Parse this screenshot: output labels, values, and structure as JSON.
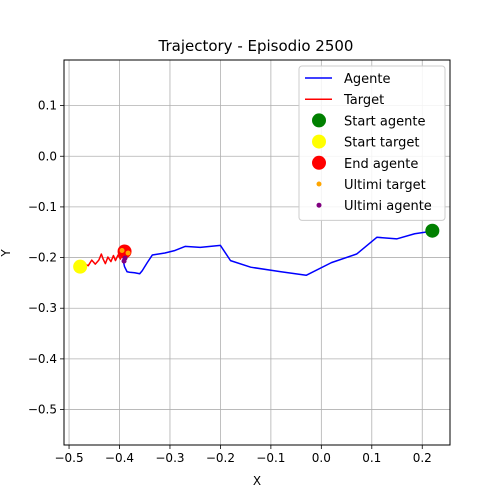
{
  "chart_data": {
    "type": "line",
    "title": "Trajectory - Episodio 2500",
    "xlabel": "X",
    "ylabel": "Y",
    "xlim": [
      -0.51,
      0.255
    ],
    "ylim": [
      -0.57,
      0.19
    ],
    "xticks": [
      -0.5,
      -0.4,
      -0.3,
      -0.2,
      -0.1,
      0.0,
      0.1,
      0.2
    ],
    "xtick_labels": [
      "−0.5",
      "−0.4",
      "−0.3",
      "−0.2",
      "−0.1",
      "0.0",
      "0.1",
      "0.2"
    ],
    "yticks": [
      0.1,
      0.0,
      -0.1,
      -0.2,
      -0.3,
      -0.4,
      -0.5
    ],
    "ytick_labels": [
      "0.1",
      "0.0",
      "−0.1",
      "−0.2",
      "−0.3",
      "−0.4",
      "−0.5"
    ],
    "grid": true,
    "legend_position": "upper right",
    "legend": [
      {
        "label": "Agente",
        "kind": "line",
        "color": "#0000ff"
      },
      {
        "label": "Target",
        "kind": "line",
        "color": "#ff0000"
      },
      {
        "label": "Start agente",
        "kind": "marker",
        "color": "#008000",
        "size": "large"
      },
      {
        "label": "Start target",
        "kind": "marker",
        "color": "#ffff00",
        "size": "large"
      },
      {
        "label": "End agente",
        "kind": "marker",
        "color": "#ff0000",
        "size": "large"
      },
      {
        "label": "Ultimi target",
        "kind": "marker",
        "color": "#ffa500",
        "size": "small"
      },
      {
        "label": "Ultimi agente",
        "kind": "marker",
        "color": "#800080",
        "size": "small"
      }
    ],
    "series": [
      {
        "name": "Agente",
        "color": "#0000ff",
        "points": [
          [
            0.22,
            -0.147
          ],
          [
            0.205,
            -0.15
          ],
          [
            0.185,
            -0.153
          ],
          [
            0.15,
            -0.163
          ],
          [
            0.11,
            -0.16
          ],
          [
            0.07,
            -0.193
          ],
          [
            0.02,
            -0.21
          ],
          [
            -0.03,
            -0.235
          ],
          [
            -0.08,
            -0.228
          ],
          [
            -0.14,
            -0.219
          ],
          [
            -0.18,
            -0.206
          ],
          [
            -0.2,
            -0.176
          ],
          [
            -0.24,
            -0.18
          ],
          [
            -0.27,
            -0.178
          ],
          [
            -0.29,
            -0.186
          ],
          [
            -0.31,
            -0.191
          ],
          [
            -0.335,
            -0.195
          ],
          [
            -0.345,
            -0.21
          ],
          [
            -0.355,
            -0.226
          ],
          [
            -0.36,
            -0.232
          ],
          [
            -0.37,
            -0.23
          ],
          [
            -0.38,
            -0.229
          ],
          [
            -0.385,
            -0.228
          ],
          [
            -0.39,
            -0.218
          ],
          [
            -0.393,
            -0.205
          ],
          [
            -0.392,
            -0.196
          ],
          [
            -0.39,
            -0.188
          ]
        ]
      },
      {
        "name": "Target",
        "color": "#ff0000",
        "points": [
          [
            -0.478,
            -0.218
          ],
          [
            -0.47,
            -0.212
          ],
          [
            -0.462,
            -0.216
          ],
          [
            -0.455,
            -0.205
          ],
          [
            -0.448,
            -0.213
          ],
          [
            -0.441,
            -0.205
          ],
          [
            -0.436,
            -0.193
          ],
          [
            -0.432,
            -0.204
          ],
          [
            -0.428,
            -0.212
          ],
          [
            -0.423,
            -0.199
          ],
          [
            -0.417,
            -0.208
          ],
          [
            -0.412,
            -0.196
          ],
          [
            -0.408,
            -0.206
          ],
          [
            -0.403,
            -0.195
          ],
          [
            -0.398,
            -0.203
          ],
          [
            -0.394,
            -0.19
          ],
          [
            -0.389,
            -0.195
          ],
          [
            -0.385,
            -0.187
          ],
          [
            -0.381,
            -0.192
          ]
        ]
      }
    ],
    "markers": [
      {
        "name": "Start agente",
        "x": 0.22,
        "y": -0.147,
        "color": "#008000",
        "size": "large"
      },
      {
        "name": "Start target",
        "x": -0.478,
        "y": -0.218,
        "color": "#ffff00",
        "size": "large"
      },
      {
        "name": "End agente",
        "x": -0.39,
        "y": -0.188,
        "color": "#ff0000",
        "size": "large"
      },
      {
        "name": "Ultimi target",
        "x": -0.383,
        "y": -0.191,
        "color": "#ffa500",
        "size": "small"
      },
      {
        "name": "Ultimi target",
        "x": -0.395,
        "y": -0.186,
        "color": "#ffa500",
        "size": "small"
      },
      {
        "name": "Ultimi agente",
        "x": -0.391,
        "y": -0.207,
        "color": "#800080",
        "size": "small"
      },
      {
        "name": "Ultimi agente",
        "x": -0.389,
        "y": -0.201,
        "color": "#800080",
        "size": "small"
      }
    ]
  }
}
